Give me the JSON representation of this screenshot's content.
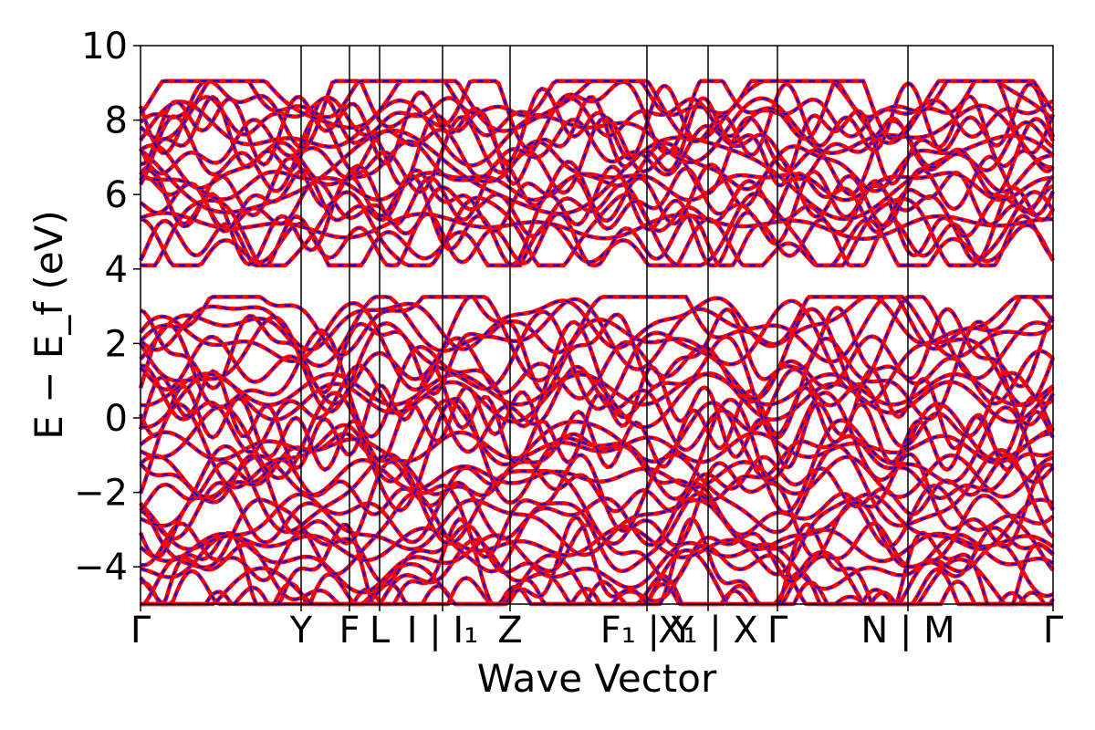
{
  "chart_data": {
    "type": "line",
    "title": "",
    "xlabel": "Wave Vector",
    "ylabel": "E − E_f (eV)",
    "ylim": [
      -5,
      10
    ],
    "yticks": [
      {
        "value": 10,
        "label": "10"
      },
      {
        "value": 8,
        "label": "8"
      },
      {
        "value": 6,
        "label": "6"
      },
      {
        "value": 4,
        "label": "4"
      },
      {
        "value": 2,
        "label": "2"
      },
      {
        "value": 0,
        "label": "0"
      },
      {
        "value": -2,
        "label": "−2"
      },
      {
        "value": -4,
        "label": "−4"
      }
    ],
    "kpath": {
      "range": [
        0,
        1
      ],
      "ticks": [
        {
          "pos": 0.0,
          "label": "Γ"
        },
        {
          "pos": 0.176,
          "label": "Y"
        },
        {
          "pos": 0.229,
          "label": "F"
        },
        {
          "pos": 0.262,
          "label": "L"
        },
        {
          "pos": 0.331,
          "label": "I | I₁"
        },
        {
          "pos": 0.405,
          "label": "Z"
        },
        {
          "pos": 0.555,
          "label": "F₁ | Y"
        },
        {
          "pos": 0.622,
          "label": "X₁ | X"
        },
        {
          "pos": 0.698,
          "label": "Γ"
        },
        {
          "pos": 0.841,
          "label": "N | M"
        },
        {
          "pos": 1.0,
          "label": "Γ"
        }
      ],
      "segment_breaks": [
        0.555,
        0.841
      ]
    },
    "band_count": 52,
    "series": [
      {
        "color": "#ff0000",
        "style": "solid"
      },
      {
        "color": "#0000ff",
        "style": "dashed"
      }
    ],
    "note_bands": "Dense band structure: conduction bands ~4.1–9.0 eV, valence manifold ~-5–3.2 eV, gap between ~3.2 and ~4.2 eV"
  },
  "colors": {
    "band_solid": "#ff0000",
    "band_dashed": "#0000ff",
    "axis": "#000000",
    "background": "#ffffff"
  }
}
